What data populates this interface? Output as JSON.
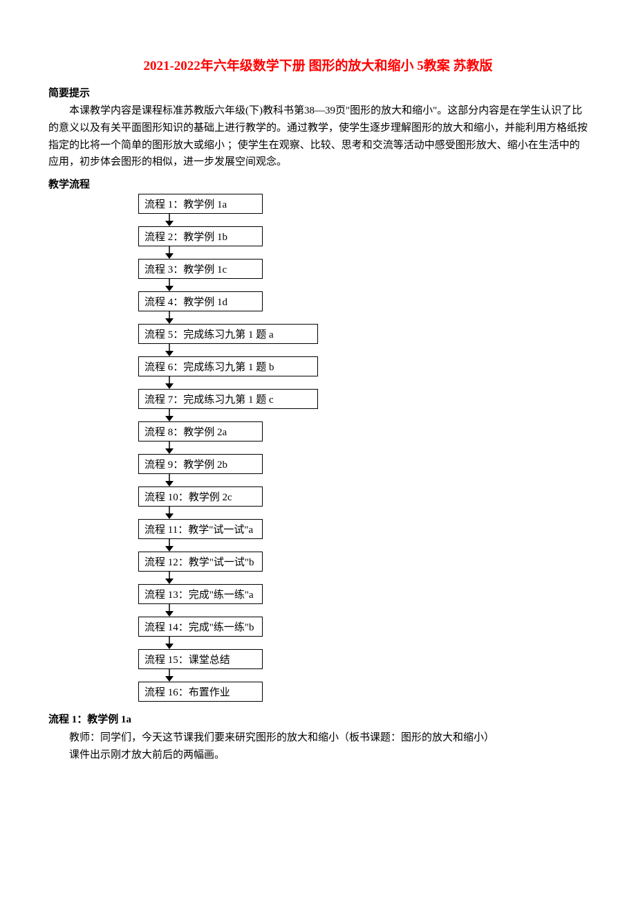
{
  "title": "2021-2022年六年级数学下册 图形的放大和缩小 5教案 苏教版",
  "section1_heading": "简要提示",
  "intro_text": "本课教学内容是课程标准苏教版六年级(下)教科书第38—39页\"图形的放大和缩小\"。这部分内容是在学生认识了比的意义以及有关平面图形知识的基础上进行教学的。通过教学，使学生逐步理解图形的放大和缩小，并能利用方格纸按指定的比将一个简单的图形放大或缩小 ；使学生在观察、比较、思考和交流等活动中感受图形放大、缩小在生活中的应用，初步体会图形的相似，进一步发展空间观念。",
  "section2_heading": "教学流程",
  "flowchart": {
    "nodes": [
      {
        "label": "流程 1：教学例 1a",
        "wide": false
      },
      {
        "label": "流程 2：教学例 1b",
        "wide": false
      },
      {
        "label": "流程 3：教学例 1c",
        "wide": false
      },
      {
        "label": "流程 4：教学例 1d",
        "wide": false
      },
      {
        "label": "流程 5：完成练习九第 1 题 a",
        "wide": true
      },
      {
        "label": "流程 6：完成练习九第 1 题 b",
        "wide": true
      },
      {
        "label": "流程 7：完成练习九第 1 题 c",
        "wide": true
      },
      {
        "label": "流程 8：教学例 2a",
        "wide": false
      },
      {
        "label": "流程 9：教学例 2b",
        "wide": false
      },
      {
        "label": "流程 10：教学例 2c",
        "wide": false
      },
      {
        "label": "流程 11：教学\"试一试\"a",
        "wide": false
      },
      {
        "label": "流程 12：教学\"试一试\"b",
        "wide": false
      },
      {
        "label": "流程 13：完成\"练一练\"a",
        "wide": false
      },
      {
        "label": "流程 14：完成\"练一练\"b",
        "wide": false
      },
      {
        "label": "流程 15：课堂总结",
        "wide": false
      },
      {
        "label": "流程 16：布置作业",
        "wide": false
      }
    ],
    "arrow_color": "#000000",
    "box_border_color": "#000000",
    "box_bg_color": "#ffffff"
  },
  "footer_heading": "流程 1：教学例 1a",
  "footer_line1": "教师：同学们，今天这节课我们要来研究图形的放大和缩小（板书课题：图形的放大和缩小）",
  "footer_line2": "课件出示刚才放大前后的两幅画。"
}
